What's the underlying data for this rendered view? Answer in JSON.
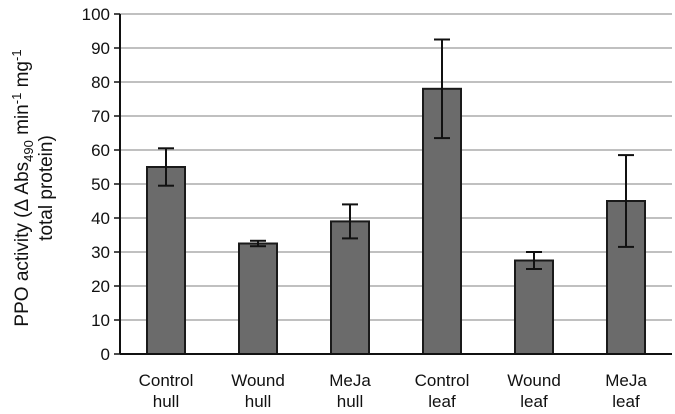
{
  "chart_data": {
    "type": "bar",
    "categories": [
      [
        "Control",
        "hull"
      ],
      [
        "Wound",
        "hull"
      ],
      [
        "MeJa",
        "hull"
      ],
      [
        "Control",
        "leaf"
      ],
      [
        "Wound",
        "leaf"
      ],
      [
        "MeJa",
        "leaf"
      ]
    ],
    "values": [
      55,
      32.5,
      39,
      78,
      27.5,
      45
    ],
    "errors": [
      5.5,
      0.8,
      5,
      14.5,
      2.5,
      13.5
    ],
    "ylim": [
      0,
      100
    ],
    "yticks": [
      0,
      10,
      20,
      30,
      40,
      50,
      60,
      70,
      80,
      90,
      100
    ],
    "ylabel": {
      "line1_prefix": "PPO activity (Δ Abs",
      "line1_sub": "490",
      "line1_mid": " min",
      "line1_sup1": "-1",
      "line1_mid2": " mg",
      "line1_sup2": "-1",
      "line2": "total protein)"
    },
    "grid": true,
    "bar_color": "#6b6b6b",
    "bar_edge": "#1a1a1a",
    "grid_color": "#9a9a9a"
  }
}
